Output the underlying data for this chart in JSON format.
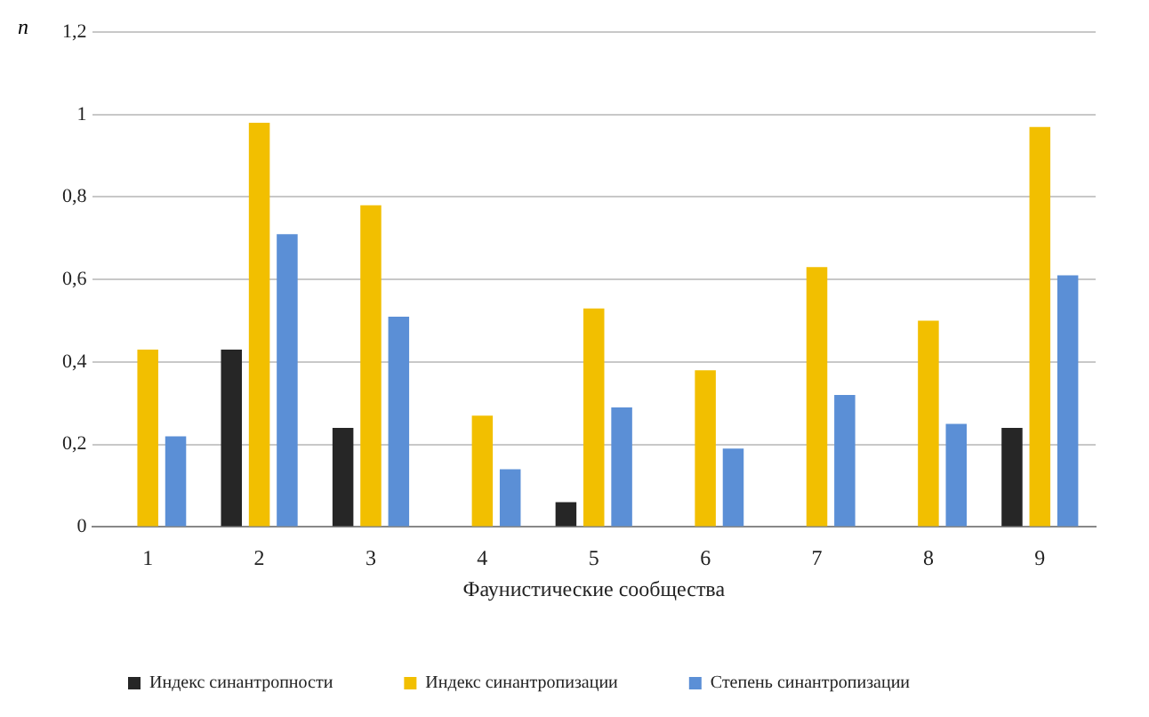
{
  "chart_data": {
    "type": "bar",
    "xlabel": "Фаунистические сообщества",
    "ylabel": "n",
    "categories": [
      "1",
      "2",
      "3",
      "4",
      "5",
      "6",
      "7",
      "8",
      "9"
    ],
    "series": [
      {
        "name": "Индекс синантропности",
        "color": "#262626",
        "values": [
          0,
          0.43,
          0.24,
          0,
          0.06,
          0,
          0,
          0,
          0.24
        ]
      },
      {
        "name": "Индекс синантропизации",
        "color": "#f2bf00",
        "values": [
          0.43,
          0.98,
          0.78,
          0.27,
          0.53,
          0.38,
          0.63,
          0.5,
          0.97
        ]
      },
      {
        "name": "Степень синантропизации",
        "color": "#5b8fd6",
        "values": [
          0.22,
          0.71,
          0.51,
          0.14,
          0.29,
          0.19,
          0.32,
          0.25,
          0.61
        ]
      }
    ],
    "ylim": [
      0,
      1.2
    ],
    "yticks": [
      0,
      {
        "value": 0.2,
        "label": "0,2"
      },
      {
        "value": 0.4,
        "label": "0,4"
      },
      {
        "value": 0.6,
        "label": "0,6"
      },
      {
        "value": 0.8,
        "label": "0,8"
      },
      1,
      {
        "value": 1.2,
        "label": "1,2"
      }
    ],
    "grid": "y",
    "legend": "bottom"
  }
}
